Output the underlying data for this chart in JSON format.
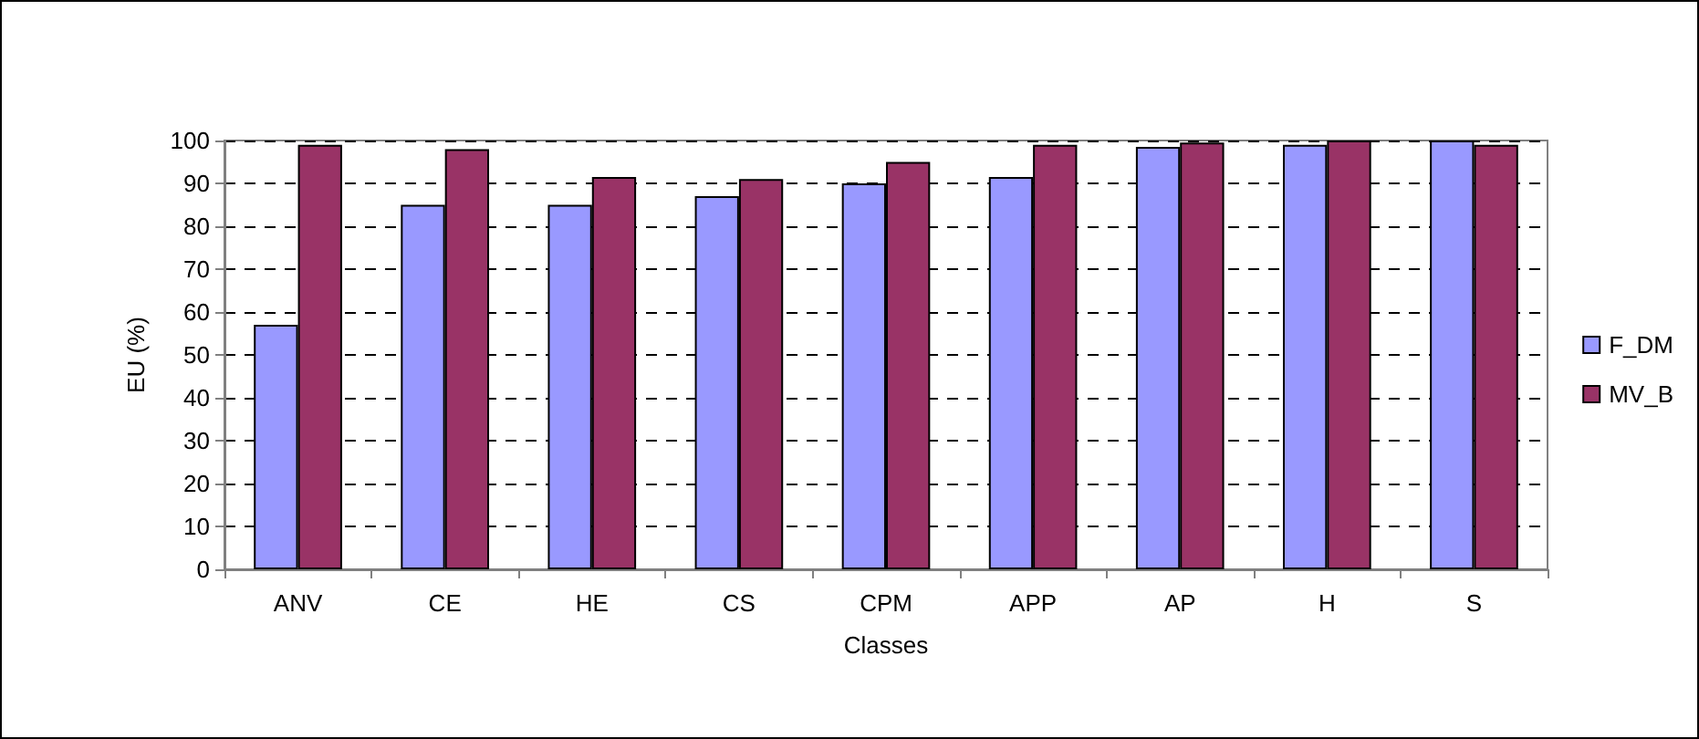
{
  "chart_data": {
    "type": "bar",
    "xlabel": "Classes",
    "ylabel": "EU (%)",
    "categories": [
      "ANV",
      "CE",
      "HE",
      "CS",
      "CPM",
      "APP",
      "AP",
      "H",
      "S"
    ],
    "series": [
      {
        "name": "F_DM",
        "color": "#9999ff",
        "values": [
          57,
          85,
          85,
          87,
          90,
          91.5,
          98.5,
          99,
          100
        ]
      },
      {
        "name": "MV_B",
        "color": "#993366",
        "values": [
          99,
          98,
          91.5,
          91,
          95,
          99,
          99.5,
          100,
          99
        ]
      }
    ],
    "ylim": [
      0,
      100
    ],
    "yticks": [
      0,
      10,
      20,
      30,
      40,
      50,
      60,
      70,
      80,
      90,
      100
    ],
    "grid": "y",
    "legend": "right"
  }
}
